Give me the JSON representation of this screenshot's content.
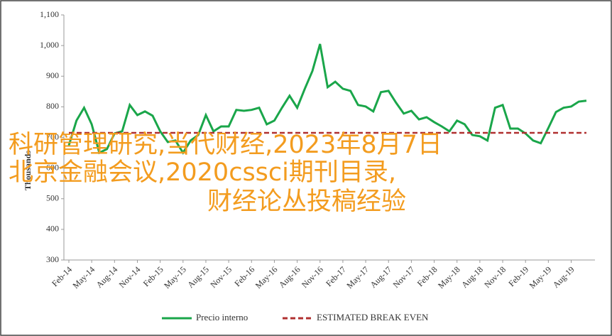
{
  "chart_data": {
    "type": "line",
    "y_label": "Thousands",
    "categories": [
      "Feb-14",
      null,
      null,
      "May-14",
      null,
      null,
      "Aug-14",
      null,
      null,
      "Nov-14",
      null,
      null,
      "Feb-15",
      null,
      null,
      "May-15",
      null,
      null,
      "Aug-15",
      null,
      null,
      "Nov-15",
      null,
      null,
      "Feb-16",
      null,
      null,
      "May-16",
      null,
      null,
      "Aug-16",
      null,
      null,
      "Nov-16",
      null,
      null,
      "Feb-17",
      null,
      null,
      "May-17",
      null,
      null,
      "Aug-17",
      null,
      null,
      "Nov-17",
      null,
      null,
      "Feb-18",
      null,
      null,
      "May-18",
      null,
      null,
      "Aug-18",
      null,
      null,
      "Nov-18",
      null,
      null,
      "Feb-19",
      null,
      null,
      "May-19",
      null,
      null,
      "Aug-19",
      null,
      null
    ],
    "series": [
      {
        "name": "Precio interno",
        "color": "#1aa64a",
        "style": "solid",
        "values": [
          674,
          755,
          797,
          743,
          650,
          662,
          713,
          720,
          806,
          773,
          785,
          771,
          720,
          685,
          690,
          650,
          690,
          708,
          773,
          720,
          736,
          736,
          790,
          787,
          790,
          797,
          743,
          755,
          797,
          836,
          797,
          859,
          917,
          1005,
          864,
          882,
          859,
          852,
          806,
          801,
          785,
          848,
          852,
          813,
          778,
          787,
          759,
          766,
          750,
          736,
          720,
          755,
          743,
          708,
          704,
          690,
          797,
          806,
          729,
          729,
          713,
          690,
          681,
          731,
          783,
          797,
          801,
          817,
          820
        ]
      },
      {
        "name": "ESTIMATED BREAK EVEN",
        "color": "#b03030",
        "style": "dashed",
        "values": [
          715,
          715,
          715,
          715,
          715,
          715,
          715,
          715,
          715,
          715,
          715,
          715,
          715,
          715,
          715,
          715,
          715,
          715,
          715,
          715,
          715,
          715,
          715,
          715,
          715,
          715,
          715,
          715,
          715,
          715,
          715,
          715,
          715,
          715,
          715,
          715,
          715,
          715,
          715,
          715,
          715,
          715,
          715,
          715,
          715,
          715,
          715,
          715,
          715,
          715,
          715,
          715,
          715,
          715,
          715,
          715,
          715,
          715,
          715,
          715,
          715,
          715,
          715,
          715,
          715,
          715,
          715,
          715,
          715
        ]
      }
    ],
    "ylim": [
      300,
      1100
    ],
    "yticks": [
      300,
      400,
      500,
      600,
      700,
      800,
      900,
      {
        "value": 1000,
        "label": "1,000"
      },
      {
        "value": 1100,
        "label": "1,100"
      }
    ],
    "grid": false,
    "legend": "bottom",
    "annotations": [
      "科研管理研究,当代财经,2023年8月7日",
      "北京金融会议,2020cssci期刊目录,",
      "财经论丛投稿经验"
    ]
  }
}
